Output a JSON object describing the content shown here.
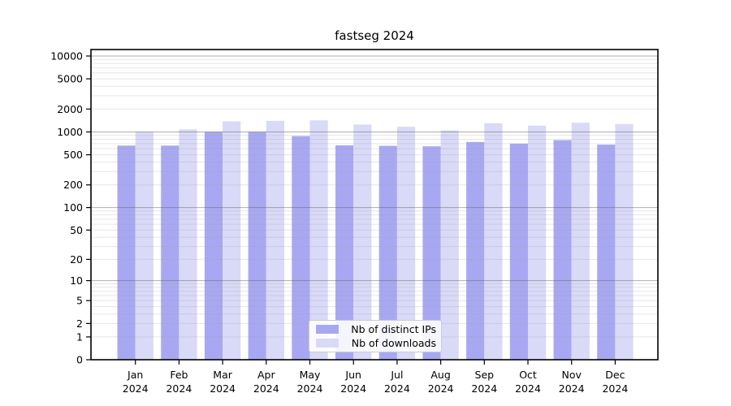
{
  "chart_data": {
    "type": "bar",
    "title": "fastseg 2024",
    "categories": [
      "Jan",
      "Feb",
      "Mar",
      "Apr",
      "May",
      "Jun",
      "Jul",
      "Aug",
      "Sep",
      "Oct",
      "Nov",
      "Dec"
    ],
    "year": "2024",
    "series": [
      {
        "name": "Nb of distinct IPs",
        "color": "#a8a8f2",
        "values": [
          660,
          660,
          1000,
          1000,
          880,
          665,
          655,
          645,
          735,
          700,
          780,
          680
        ]
      },
      {
        "name": "Nb of downloads",
        "color": "#d9d9f8",
        "values": [
          1010,
          1080,
          1380,
          1400,
          1420,
          1250,
          1170,
          1050,
          1300,
          1210,
          1320,
          1270
        ]
      }
    ],
    "yscale": "log1p",
    "y_ticks": [
      10000,
      5000,
      2000,
      1000,
      500,
      200,
      100,
      50,
      20,
      10,
      5,
      2,
      1,
      0
    ],
    "ylim": [
      0,
      12000
    ],
    "grid": true,
    "legend_position": "lower center"
  }
}
